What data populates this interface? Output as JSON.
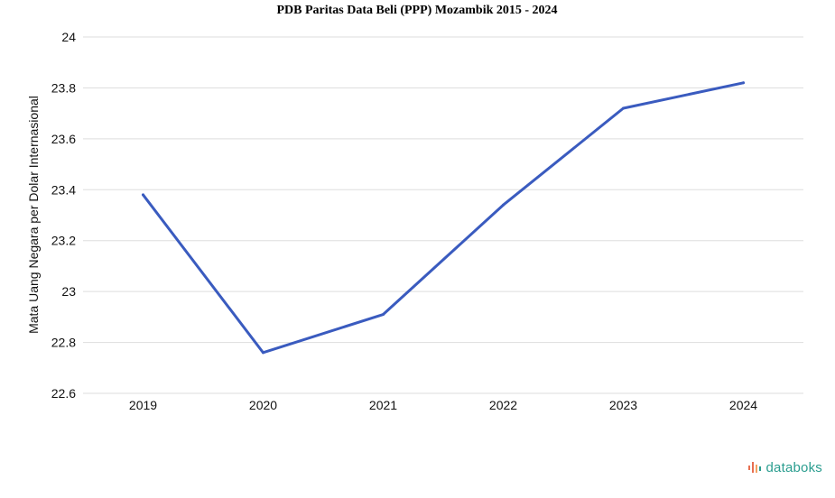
{
  "chart_data": {
    "type": "line",
    "title": "PDB Paritas Data Beli (PPP) Mozambik 2015 - 2024",
    "xlabel": "",
    "ylabel": "Mata Uang Negara per Dolar Internasional",
    "categories": [
      "2019",
      "2020",
      "2021",
      "2022",
      "2023",
      "2024"
    ],
    "series": [
      {
        "values": [
          23.38,
          22.76,
          22.91,
          23.34,
          23.72,
          23.82
        ]
      }
    ],
    "ylim": [
      22.6,
      24
    ],
    "yticks": [
      "22.6",
      "22.8",
      "23",
      "23.2",
      "23.4",
      "23.6",
      "23.8",
      "24"
    ],
    "grid": true,
    "line_color": "#3a5bbf"
  },
  "brand": {
    "name": "databoks",
    "icon": "databoks-logo-icon",
    "color": "#2a9d8f"
  }
}
